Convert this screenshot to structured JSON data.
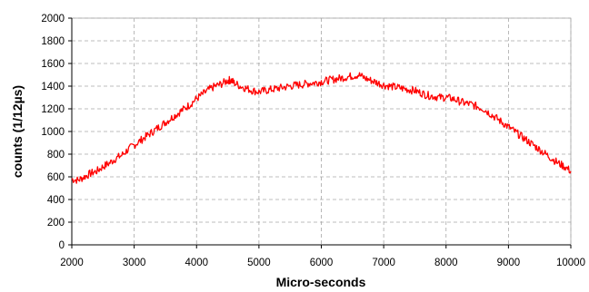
{
  "chart_data": {
    "type": "line",
    "title": "",
    "xlabel": "Micro-seconds",
    "ylabel": "counts (1/12µs)",
    "xlim": [
      2000,
      10000
    ],
    "ylim": [
      0,
      2000
    ],
    "xticks": [
      2000,
      3000,
      4000,
      5000,
      6000,
      7000,
      8000,
      9000,
      10000
    ],
    "yticks": [
      0,
      200,
      400,
      600,
      800,
      1000,
      1200,
      1400,
      1600,
      1800,
      2000
    ],
    "grid": true,
    "legend": "none",
    "series": [
      {
        "color": "#ff0000",
        "x": [
          2000,
          2100,
          2200,
          2300,
          2400,
          2500,
          2600,
          2700,
          2800,
          2900,
          3000,
          3100,
          3200,
          3300,
          3400,
          3500,
          3600,
          3700,
          3800,
          3900,
          4000,
          4100,
          4200,
          4300,
          4400,
          4500,
          4550,
          4600,
          4700,
          4800,
          4900,
          5000,
          5100,
          5200,
          5300,
          5400,
          5500,
          5600,
          5700,
          5800,
          5900,
          6000,
          6100,
          6200,
          6300,
          6400,
          6500,
          6600,
          6700,
          6800,
          6900,
          7000,
          7100,
          7200,
          7300,
          7400,
          7500,
          7600,
          7700,
          7800,
          7900,
          8000,
          8100,
          8200,
          8300,
          8400,
          8500,
          8600,
          8700,
          8800,
          8900,
          9000,
          9100,
          9200,
          9300,
          9400,
          9500,
          9600,
          9700,
          9800,
          9900,
          10000
        ],
        "values": [
          580,
          570,
          600,
          630,
          650,
          690,
          720,
          760,
          790,
          840,
          880,
          920,
          960,
          1000,
          1040,
          1080,
          1120,
          1160,
          1200,
          1240,
          1290,
          1330,
          1370,
          1400,
          1420,
          1450,
          1455,
          1430,
          1400,
          1380,
          1360,
          1350,
          1360,
          1370,
          1380,
          1390,
          1400,
          1410,
          1415,
          1425,
          1430,
          1440,
          1450,
          1460,
          1470,
          1480,
          1490,
          1500,
          1470,
          1450,
          1430,
          1410,
          1400,
          1390,
          1380,
          1370,
          1360,
          1340,
          1320,
          1310,
          1300,
          1300,
          1290,
          1270,
          1250,
          1240,
          1220,
          1200,
          1160,
          1120,
          1080,
          1040,
          1000,
          960,
          920,
          880,
          840,
          800,
          760,
          720,
          690,
          650
        ]
      }
    ]
  }
}
